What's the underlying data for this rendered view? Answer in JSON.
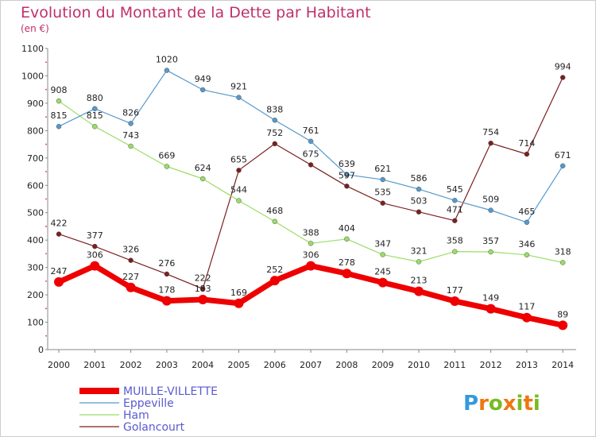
{
  "chart_data": {
    "type": "line",
    "title": "Evolution du Montant de la Dette par Habitant",
    "subtitle": "(en €)",
    "xlabel": "",
    "ylabel": "",
    "ylim": [
      0,
      1100
    ],
    "yticks": [
      0,
      100,
      200,
      300,
      400,
      500,
      600,
      700,
      800,
      900,
      1000,
      1100
    ],
    "categories": [
      "2000",
      "2001",
      "2002",
      "2003",
      "2004",
      "2005",
      "2006",
      "2007",
      "2008",
      "2009",
      "2010",
      "2011",
      "2012",
      "2013",
      "2014"
    ],
    "grid": false,
    "legend_position": "bottom-left",
    "series": [
      {
        "name": "Golancourt",
        "color": "#7a1f1f",
        "values": [
          422,
          377,
          326,
          276,
          222,
          655,
          752,
          675,
          597,
          535,
          503,
          471,
          754,
          714,
          994
        ]
      },
      {
        "name": "Ham",
        "color": "#99dd66",
        "values": [
          908,
          815,
          743,
          669,
          624,
          544,
          468,
          388,
          404,
          347,
          321,
          358,
          357,
          346,
          318
        ]
      },
      {
        "name": "Eppeville",
        "color": "#5599cc",
        "values": [
          815,
          880,
          826,
          1020,
          949,
          921,
          838,
          761,
          639,
          621,
          586,
          545,
          509,
          465,
          671
        ]
      },
      {
        "name": "MUILLE-VILLETTE",
        "color": "#ee0000",
        "values": [
          247,
          306,
          227,
          178,
          183,
          169,
          252,
          306,
          278,
          245,
          213,
          177,
          149,
          117,
          89
        ]
      }
    ],
    "legend": [
      "MUILLE-VILLETTE",
      "Eppeville",
      "Ham",
      "Golancourt"
    ]
  },
  "logo": {
    "letters": [
      "P",
      "r",
      "o",
      "x",
      "i",
      "t",
      "i"
    ],
    "colors": [
      "#3399dd",
      "#ee7711",
      "#77bb22",
      "#ee7711",
      "#77bb22",
      "#ee7711",
      "#77bb22"
    ]
  }
}
